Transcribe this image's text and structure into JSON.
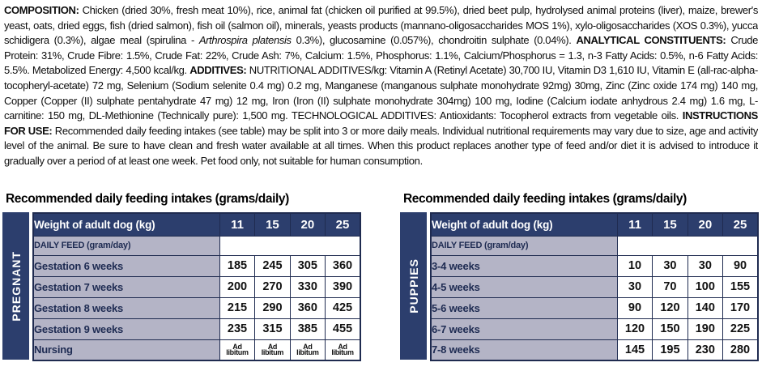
{
  "colors": {
    "navy": "#2c3e6d",
    "lavender": "#b4b4c6",
    "border": "#1f2b50",
    "row_label_text": "#1e2b52",
    "cell_text": "#111111"
  },
  "composition_text": {
    "segments": [
      {
        "style": "bold",
        "text": "COMPOSITION:"
      },
      {
        "style": "normal",
        "text": " Chicken (dried 30%, fresh meat 10%), rice, animal fat (chicken oil purified at 99.5%), dried beet pulp, hydrolysed animal proteins (liver), maize, brewer's yeast, oats, dried eggs, fish (dried salmon), fish oil (salmon oil), minerals, yeasts products (mannano-oligosaccharides MOS 1%), xylo-oligosaccharides (XOS 0.3%), yucca schidigera (0.3%), algae meal (spirulina - "
      },
      {
        "style": "italic",
        "text": "Arthrospira platensis"
      },
      {
        "style": "normal",
        "text": " 0.3%), glucosamine (0.057%), chondroitin sulphate (0.04%). "
      },
      {
        "style": "bold",
        "text": "ANALYTICAL CONSTITUENTS:"
      },
      {
        "style": "normal",
        "text": " Crude Protein: 31%, Crude Fibre: 1.5%, Crude Fat: 22%, Crude Ash: 7%, Calcium: 1.5%, Phosphorus: 1.1%, Calcium/Phosphorus = 1.3, n-3 Fatty Acids: 0.5%, n-6 Fatty Acids: 5.5%. Metabolized Energy: 4,500 kcal/kg. "
      },
      {
        "style": "bold",
        "text": "ADDITIVES:"
      },
      {
        "style": "normal",
        "text": " NUTRITIONAL ADDITIVES/kg: Vitamin A (Retinyl Acetate) 30,700 IU, Vitamin D3 1,610 IU, Vitamin E (all-rac-alpha-tocopheryl-acetate) 72 mg, Selenium (Sodium selenite 0.4 mg) 0.2 mg, Manganese (manganous sulphate monohydrate 92mg) 30mg, Zinc (Zinc oxide 174 mg) 140 mg, Copper (Copper (II) sulphate pentahydrate 47 mg) 12 mg, Iron (Iron (II) sulphate monohydrate 304mg) 100 mg, Iodine (Calcium iodate anhydrous 2.4 mg) 1.6 mg, L-carnitine: 150 mg, DL-Methionine (Technically pure): 1,500 mg. TECHNOLOGICAL ADDITIVES: Antioxidants: Tocopherol extracts from vegetable oils. "
      },
      {
        "style": "bold",
        "text": "INSTRUCTIONS FOR USE:"
      },
      {
        "style": "normal",
        "text": " Recommended daily feeding intakes (see table) may be split into 3 or more daily meals. Individual nutritional requirements may vary due to size, age and activity level of the animal. Be sure to have clean and fresh water available at all times. When this product replaces another type of feed and/or diet it is advised to introduce it gradually over a period of at least one week. Pet food only, not suitable for human consumption."
      }
    ]
  },
  "tables": [
    {
      "title": "Recommended daily feeding intakes (grams/daily)",
      "side_label": "PREGNANT",
      "header": {
        "label": "Weight of adult dog (kg)",
        "columns": [
          "11",
          "15",
          "20",
          "25"
        ]
      },
      "subheader": "DAILY FEED (gram/day)",
      "rows": [
        {
          "label": "Gestation 6 weeks",
          "values": [
            "185",
            "245",
            "305",
            "360"
          ]
        },
        {
          "label": "Gestation 7 weeks",
          "values": [
            "200",
            "270",
            "330",
            "390"
          ]
        },
        {
          "label": "Gestation 8 weeks",
          "values": [
            "215",
            "290",
            "360",
            "425"
          ]
        },
        {
          "label": "Gestation 9 weeks",
          "values": [
            "235",
            "315",
            "385",
            "455"
          ]
        },
        {
          "label": "Nursing",
          "values": [
            "Ad\nlibitum",
            "Ad\nlibitum",
            "Ad\nlibitum",
            "Ad\nlibitum"
          ]
        }
      ]
    },
    {
      "title": "Recommended daily feeding intakes (grams/daily)",
      "side_label": "PUPPIES",
      "header": {
        "label": "Weight of adult dog (kg)",
        "columns": [
          "11",
          "15",
          "20",
          "25"
        ]
      },
      "subheader": "DAILY FEED (gram/day)",
      "rows": [
        {
          "label": "3-4 weeks",
          "values": [
            "10",
            "30",
            "30",
            "90"
          ]
        },
        {
          "label": "4-5 weeks",
          "values": [
            "30",
            "70",
            "100",
            "155"
          ]
        },
        {
          "label": "5-6 weeks",
          "values": [
            "90",
            "120",
            "140",
            "170"
          ]
        },
        {
          "label": "6-7 weeks",
          "values": [
            "120",
            "150",
            "190",
            "225"
          ]
        },
        {
          "label": "7-8 weeks",
          "values": [
            "145",
            "195",
            "230",
            "280"
          ]
        }
      ]
    }
  ]
}
